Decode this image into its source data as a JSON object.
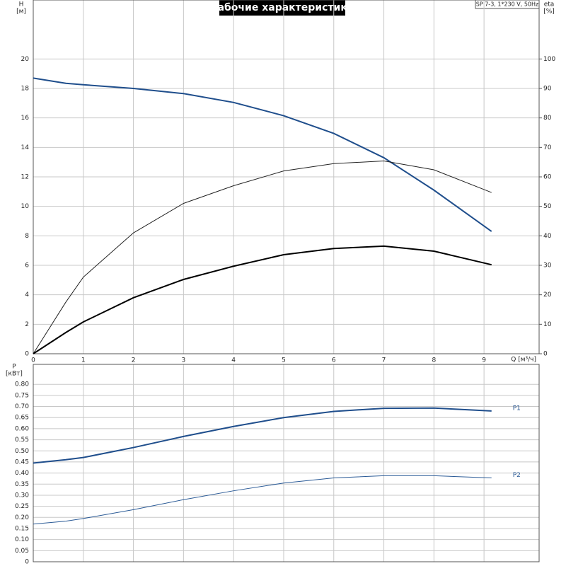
{
  "chart_data": [
    {
      "type": "line",
      "title": "Рабочие характеристики",
      "subtitle": "SP 7-3, 1*230 V, 50Hz",
      "xlabel": "Q [м³/ч]",
      "ylabel": "H",
      "ylabel_unit": "[м]",
      "y2label": "eta",
      "y2label_unit": "[%]",
      "x": [
        0,
        0.65,
        1,
        2,
        3,
        4,
        5,
        6,
        7,
        8,
        9.15
      ],
      "xlim": [
        0,
        10.1
      ],
      "xticks": [
        0,
        1,
        2,
        3,
        4,
        5,
        6,
        7,
        8,
        9
      ],
      "ylim": [
        0,
        24
      ],
      "yticks": [
        0,
        2,
        4,
        6,
        8,
        10,
        12,
        14,
        16,
        18,
        20
      ],
      "y2lim": [
        0,
        120
      ],
      "y2ticks": [
        0,
        10,
        20,
        30,
        40,
        50,
        60,
        70,
        80,
        90,
        100
      ],
      "grid": true,
      "series": [
        {
          "color": "#1f4e8c",
          "width": 2,
          "values": [
            18.7,
            18.35,
            18.25,
            18.0,
            17.65,
            17.05,
            16.15,
            14.95,
            13.3,
            11.1,
            8.3
          ]
        },
        {
          "color": "#222222",
          "width": 1,
          "axis": "y2",
          "values": [
            0,
            17.5,
            26,
            41,
            51,
            57,
            62,
            64.5,
            65.4,
            62.4,
            54.7
          ]
        },
        {
          "color": "#000000",
          "width": 2,
          "axis": "y2",
          "values": [
            0,
            7.2,
            10.8,
            19,
            25.2,
            29.7,
            33.6,
            35.7,
            36.5,
            34.8,
            30.2
          ]
        }
      ]
    },
    {
      "type": "line",
      "ylabel": "P",
      "ylabel_unit": "[кВт]",
      "x": [
        0,
        0.65,
        1,
        2,
        3,
        4,
        5,
        6,
        7,
        8,
        9.15
      ],
      "xlim": [
        0,
        10.1
      ],
      "ylim": [
        0,
        0.89
      ],
      "yticks": [
        0,
        0.05,
        {
          "value": 0.1,
          "label": "0.10"
        },
        0.15,
        {
          "value": 0.2,
          "label": "0.20"
        },
        0.25,
        {
          "value": 0.3,
          "label": "0.30"
        },
        0.35,
        {
          "value": 0.4,
          "label": "0.40"
        },
        0.45,
        {
          "value": 0.5,
          "label": "0.50"
        },
        0.55,
        {
          "value": 0.6,
          "label": "0.60"
        },
        0.65,
        {
          "value": 0.7,
          "label": "0.70"
        },
        0.75,
        {
          "value": 0.8,
          "label": "0.80"
        }
      ],
      "grid": true,
      "series": [
        {
          "name": "P1",
          "color": "#1f4e8c",
          "width": 2,
          "values": [
            0.445,
            0.46,
            0.47,
            0.515,
            0.565,
            0.61,
            0.65,
            0.678,
            0.692,
            0.693,
            0.68
          ]
        },
        {
          "name": "P2",
          "color": "#2a5a96",
          "width": 1,
          "values": [
            0.17,
            0.183,
            0.195,
            0.235,
            0.28,
            0.32,
            0.355,
            0.378,
            0.388,
            0.388,
            0.378
          ]
        }
      ]
    }
  ]
}
